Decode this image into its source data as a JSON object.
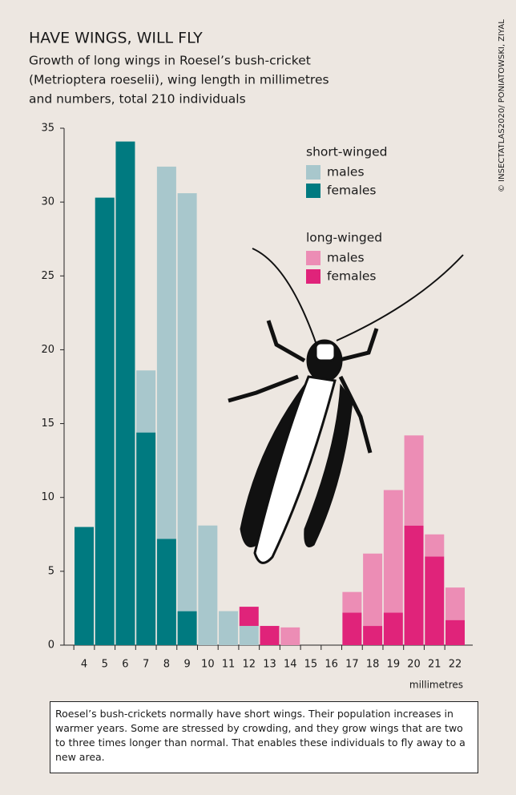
{
  "chart_data": {
    "type": "stacked_bar",
    "title": "HAVE WINGS, WILL FLY",
    "subtitle_lines": [
      "Growth of long wings in Roesel’s bush-cricket",
      "(Metrioptera roeselii), wing length in millimetres",
      "and numbers, total 210 individuals"
    ],
    "x_label": "millimetres",
    "source": "© INSECTATLAS2020/ PONIATOWSKI, ZIYAL",
    "note": "Roesel’s bush-crickets normally have short wings. Their population increases in warmer years. Some are stressed by crowding, and they grow wings that are two to three times longer than normal. That enables these individuals to fly away to a new area.",
    "legend_titles": [
      "short-winged",
      "long-winged"
    ],
    "categories": [
      "4",
      "5",
      "6",
      "7",
      "8",
      "9",
      "10",
      "11",
      "12",
      "13",
      "14",
      "15",
      "16",
      "17",
      "18",
      "19",
      "20",
      "21",
      "22"
    ],
    "series": [
      {
        "name": "females",
        "color": "#007a80",
        "values": [
          8,
          30.3,
          34.1,
          14.4,
          7.2,
          2.3,
          null,
          null,
          null,
          null,
          null,
          null,
          null,
          null,
          null,
          null,
          null,
          null,
          null
        ]
      },
      {
        "name": "males",
        "color": "#a8c7cc",
        "values": [
          null,
          null,
          null,
          4.2,
          25.2,
          28.3,
          8.1,
          2.3,
          1.3,
          null,
          null,
          null,
          null,
          null,
          null,
          null,
          null,
          null,
          null
        ]
      },
      {
        "name": "females",
        "color": "#e0237a",
        "values": [
          null,
          null,
          null,
          null,
          null,
          null,
          null,
          null,
          1.3,
          1.3,
          null,
          null,
          null,
          2.2,
          1.3,
          2.2,
          8.1,
          6.0,
          1.7
        ]
      },
      {
        "name": "males",
        "color": "#ec8db5",
        "values": [
          null,
          null,
          null,
          null,
          null,
          null,
          null,
          null,
          null,
          null,
          1.2,
          null,
          null,
          1.4,
          4.9,
          8.3,
          6.1,
          1.5,
          2.2
        ]
      }
    ],
    "ylim": [
      0,
      35
    ],
    "yticks": [
      0,
      5,
      10,
      15,
      20,
      25,
      30,
      35
    ]
  }
}
